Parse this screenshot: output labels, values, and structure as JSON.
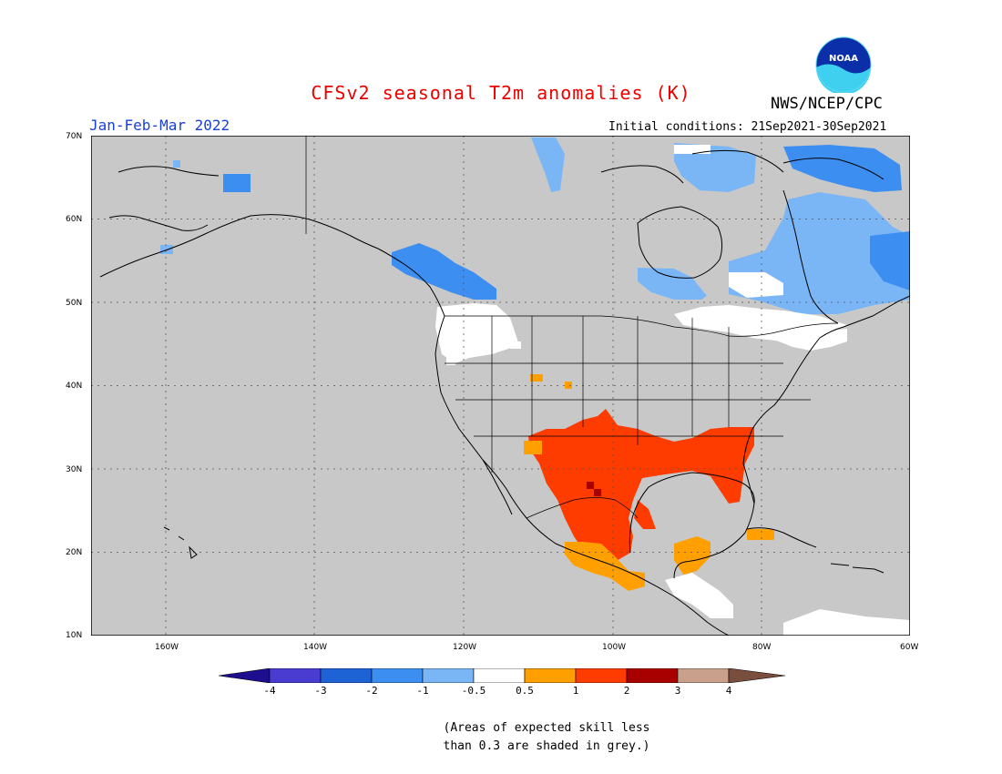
{
  "title": "CFSv2 seasonal T2m anomalies (K)",
  "period": "Jan-Feb-Mar 2022",
  "initial_conditions": "Initial conditions: 21Sep2021-30Sep2021",
  "agency": "NWS/NCEP/CPC",
  "logo_text": "NOAA",
  "lat_labels": [
    "70N",
    "60N",
    "50N",
    "40N",
    "30N",
    "20N",
    "10N"
  ],
  "lon_labels": [
    "160W",
    "140W",
    "120W",
    "100W",
    "80W",
    "60W"
  ],
  "colorbar": {
    "labels": [
      "-4",
      "-3",
      "-2",
      "-1",
      "-0.5",
      "0.5",
      "1",
      "2",
      "3",
      "4"
    ],
    "colors": [
      "#1c0e8c",
      "#4a3cd0",
      "#1e63d6",
      "#3c8ef0",
      "#7ab6f6",
      "#ffffff",
      "#ffa000",
      "#ff3c00",
      "#a80000",
      "#c8a08c",
      "#7a4e3c"
    ]
  },
  "note_line1": "(Areas of expected skill less",
  "note_line2": "than 0.3 are shaded in grey.)",
  "map_colors": {
    "grey": "#c8c8c8",
    "light_blue": "#7ab6f6",
    "blue": "#3c8ef0",
    "white": "#ffffff",
    "orange": "#ffa000",
    "red": "#ff3c00",
    "dark_red": "#a80000"
  }
}
